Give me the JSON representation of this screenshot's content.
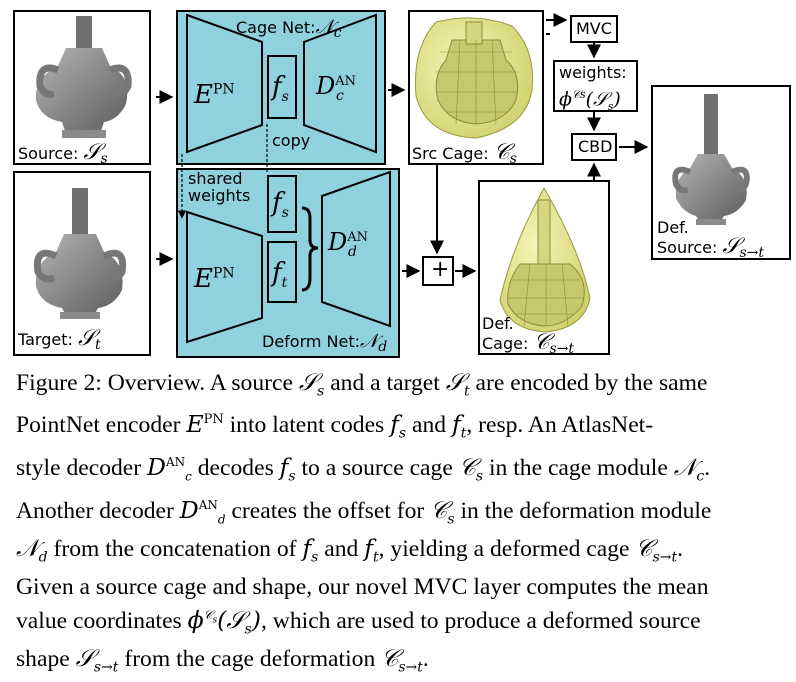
{
  "figure": {
    "source_label": "Source:",
    "source_symbol": "𝒮",
    "source_sub": "s",
    "target_label": "Target:",
    "target_symbol": "𝒮",
    "target_sub": "t",
    "cage_net_label": "Cage Net:",
    "cage_net_symbol": "𝒩",
    "cage_net_sub": "c",
    "deform_net_label": "Deform Net:",
    "deform_net_symbol": "𝒩",
    "deform_net_sub": "d",
    "encoder_E": "E",
    "encoder_sup": "PN",
    "fs_f": "f",
    "fs_sub": "s",
    "ft_f": "f",
    "ft_sub": "t",
    "decoder_D": "D",
    "decoder_sup": "AN",
    "decoder_c_sub": "c",
    "decoder_d_sub": "d",
    "copy_label": "copy",
    "shared_label_1": "shared",
    "shared_label_2": "weights",
    "src_cage_label": "Src Cage:",
    "src_cage_symbol": "𝒞",
    "src_cage_sub": "s",
    "plus": "+",
    "def_cage_label_1": "Def.",
    "def_cage_label_2": "Cage:",
    "def_cage_symbol": "𝒞",
    "def_cage_sub": "s→t",
    "mvc": "MVC",
    "weights_label": "weights:",
    "weights_phi": "ϕ",
    "weights_sup": "𝒞s",
    "weights_arg": "(𝒮",
    "weights_arg_sub": "s",
    "weights_close": ")",
    "cbd": "CBD",
    "def_source_label_1": "Def.",
    "def_source_label_2": "Source:",
    "def_source_symbol": "𝒮",
    "def_source_sub": "s→t"
  },
  "caption": {
    "l1a": "Figure 2: Overview. A source ",
    "l1b": " and a target ",
    "l1c": " are encoded by the same",
    "l2a": "PointNet encoder ",
    "l2b": " into latent codes ",
    "l2c": " and ",
    "l2d": ", resp. An AtlasNet-",
    "l3a": "style decoder ",
    "l3b": " decodes ",
    "l3c": " to a source cage ",
    "l3d": " in the cage module ",
    "l3e": ".",
    "l4a": "Another decoder ",
    "l4b": " creates the offset for ",
    "l4c": " in the deformation module",
    "l5a": "from the concatenation of ",
    "l5b": " and ",
    "l5c": ", yielding a deformed cage ",
    "l5d": ".",
    "l6": "Given a source cage and shape, our novel MVC layer computes the mean",
    "l7a": "value coordinates ",
    "l7b": ", which are used to produce a deformed source",
    "l8a": "shape ",
    "l8b": " from the cage deformation ",
    "l8c": "."
  },
  "colors": {
    "teal": "#8fd1dc",
    "cage_yellow": "#eeee99",
    "shape_grey": "#8c8c8c"
  }
}
